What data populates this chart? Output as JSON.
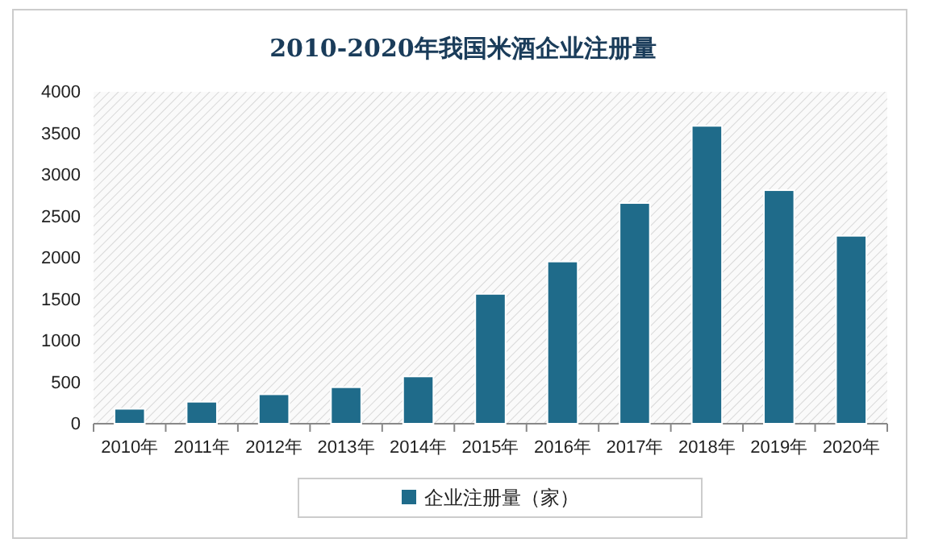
{
  "chart_data": {
    "type": "bar",
    "title": "2010-2020年我国米酒企业注册量",
    "categories": [
      "2010年",
      "2011年",
      "2012年",
      "2013年",
      "2014年",
      "2015年",
      "2016年",
      "2017年",
      "2018年",
      "2019年",
      "2020年"
    ],
    "series": [
      {
        "name": "企业注册量（家）",
        "color": "#1f6b8a",
        "values": [
          180,
          265,
          355,
          440,
          570,
          1565,
          1955,
          2660,
          3590,
          2815,
          2265
        ]
      }
    ],
    "ylim": [
      0,
      4000
    ],
    "yticks": [
      0,
      500,
      1000,
      1500,
      2000,
      2500,
      3000,
      3500,
      4000
    ],
    "grid": false,
    "legend": "bottom"
  }
}
